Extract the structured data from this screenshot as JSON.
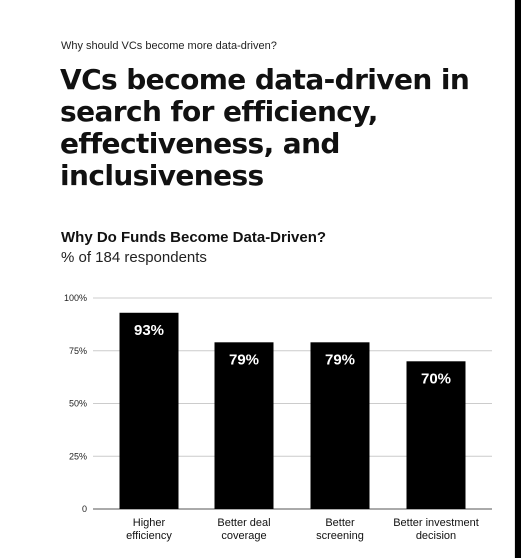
{
  "eyebrow": "Why should VCs become more data-driven?",
  "headline": "VCs become data-driven in search for efficiency, effectiveness, and inclusiveness",
  "colors": {
    "bar": "#000000",
    "gridline": "#cccccc",
    "background": "#ffffff"
  },
  "chart_data": {
    "type": "bar",
    "title": "Why Do Funds Become Data-Driven?",
    "subtitle": "% of 184 respondents",
    "categories": [
      [
        "Higher",
        "efficiency"
      ],
      [
        "Better deal",
        "coverage"
      ],
      [
        "Better",
        "screening"
      ],
      [
        "Better investment",
        "decision"
      ]
    ],
    "values": [
      93,
      79,
      79,
      70
    ],
    "value_labels": [
      "93%",
      "79%",
      "79%",
      "70%"
    ],
    "y_ticks": [
      {
        "value": 0,
        "label": "0"
      },
      {
        "value": 25,
        "label": "25%"
      },
      {
        "value": 50,
        "label": "50%"
      },
      {
        "value": 75,
        "label": "75%"
      },
      {
        "value": 100,
        "label": "100%"
      }
    ],
    "ylim": [
      0,
      100
    ],
    "grid": true,
    "legend": "none"
  }
}
